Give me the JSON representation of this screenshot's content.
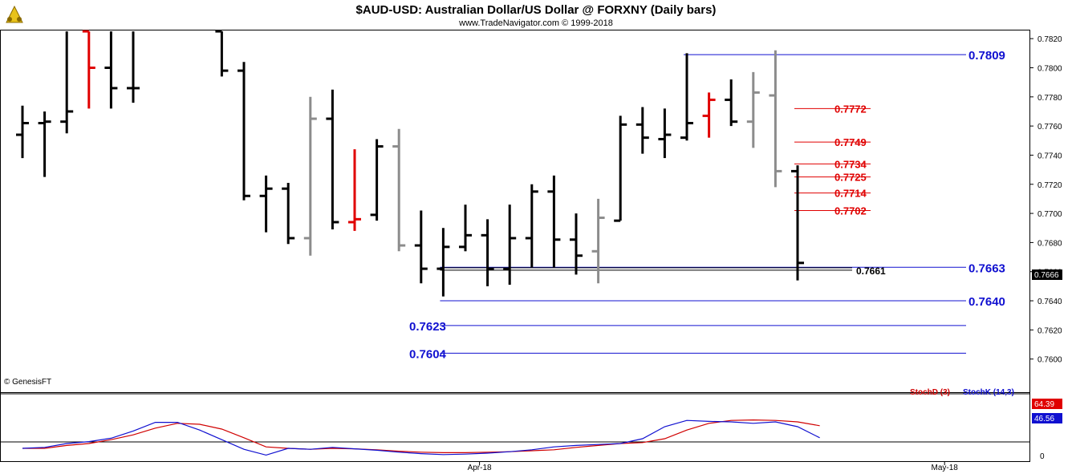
{
  "header": {
    "title": "$AUD-USD:  Australian Dollar/US Dollar @ FORXNY  (Daily bars)",
    "subtitle": "www.TradeNavigator.com © 1999-2018"
  },
  "copyright": "© GenesisFT",
  "logo_icon": "bull-bear-logo-icon",
  "colors": {
    "up": "#000000",
    "down": "#e00000",
    "neutral": "#8c8c8c",
    "blue": "#1010d0",
    "red": "#e00000",
    "stochK": "#1010d0",
    "stochD": "#d00000"
  },
  "chart_data": [
    {
      "type": "ohlc",
      "title": "$AUD-USD:  Australian Dollar/US Dollar @ FORXNY  (Daily bars)",
      "ylim": [
        0.7585,
        0.7825
      ],
      "y_ticks": [
        "0.7820",
        "0.7800",
        "0.7780",
        "0.7760",
        "0.7740",
        "0.7720",
        "0.7700",
        "0.7680",
        "0.7660",
        "0.7640",
        "0.7620",
        "0.7600"
      ],
      "x_ticks": [
        {
          "label": "Apr-18",
          "bar": 21
        },
        {
          "label": "May-18",
          "bar": 42
        }
      ],
      "bars": [
        {
          "o": 0.7754,
          "h": 0.7774,
          "l": 0.7738,
          "c": 0.7762,
          "color": "black"
        },
        {
          "o": 0.7762,
          "h": 0.777,
          "l": 0.7725,
          "c": 0.7763,
          "color": "black"
        },
        {
          "o": 0.7763,
          "h": 0.7825,
          "l": 0.7755,
          "c": 0.777,
          "color": "black"
        },
        {
          "o": 0.7825,
          "h": 0.7825,
          "l": 0.7772,
          "c": 0.78,
          "color": "red"
        },
        {
          "o": 0.78,
          "h": 0.7825,
          "l": 0.7772,
          "c": 0.7786,
          "color": "black"
        },
        {
          "o": 0.7786,
          "h": 0.7825,
          "l": 0.7776,
          "c": 0.7786,
          "color": "black"
        },
        {
          "o": null,
          "h": null,
          "l": null,
          "c": null,
          "color": "none"
        },
        {
          "o": null,
          "h": null,
          "l": null,
          "c": null,
          "color": "none"
        },
        {
          "o": null,
          "h": null,
          "l": null,
          "c": null,
          "color": "none"
        },
        {
          "o": 0.7825,
          "h": 0.7825,
          "l": 0.7794,
          "c": 0.7798,
          "color": "black"
        },
        {
          "o": 0.7798,
          "h": 0.7804,
          "l": 0.7709,
          "c": 0.7712,
          "color": "black"
        },
        {
          "o": 0.7712,
          "h": 0.7726,
          "l": 0.7687,
          "c": 0.7717,
          "color": "black"
        },
        {
          "o": 0.7717,
          "h": 0.7721,
          "l": 0.7679,
          "c": 0.7683,
          "color": "black"
        },
        {
          "o": 0.7683,
          "h": 0.778,
          "l": 0.7671,
          "c": 0.7765,
          "color": "gray"
        },
        {
          "o": 0.7765,
          "h": 0.7785,
          "l": 0.7689,
          "c": 0.7694,
          "color": "black"
        },
        {
          "o": 0.7694,
          "h": 0.7744,
          "l": 0.7688,
          "c": 0.7696,
          "color": "red"
        },
        {
          "o": 0.7699,
          "h": 0.7751,
          "l": 0.7695,
          "c": 0.7746,
          "color": "black"
        },
        {
          "o": 0.7746,
          "h": 0.7758,
          "l": 0.7674,
          "c": 0.7678,
          "color": "gray"
        },
        {
          "o": 0.7678,
          "h": 0.7702,
          "l": 0.7652,
          "c": 0.7662,
          "color": "black"
        },
        {
          "o": 0.7662,
          "h": 0.769,
          "l": 0.7643,
          "c": 0.7677,
          "color": "black"
        },
        {
          "o": 0.7677,
          "h": 0.7706,
          "l": 0.7674,
          "c": 0.7685,
          "color": "black"
        },
        {
          "o": 0.7685,
          "h": 0.7696,
          "l": 0.765,
          "c": 0.7662,
          "color": "black"
        },
        {
          "o": 0.7662,
          "h": 0.7706,
          "l": 0.7651,
          "c": 0.7683,
          "color": "black"
        },
        {
          "o": 0.7683,
          "h": 0.772,
          "l": 0.7663,
          "c": 0.7715,
          "color": "black"
        },
        {
          "o": 0.7715,
          "h": 0.7726,
          "l": 0.7663,
          "c": 0.7682,
          "color": "black"
        },
        {
          "o": 0.7682,
          "h": 0.77,
          "l": 0.7658,
          "c": 0.7671,
          "color": "black"
        },
        {
          "o": 0.7674,
          "h": 0.771,
          "l": 0.7652,
          "c": 0.7697,
          "color": "gray"
        },
        {
          "o": 0.7695,
          "h": 0.7767,
          "l": 0.7695,
          "c": 0.7761,
          "color": "black"
        },
        {
          "o": 0.7761,
          "h": 0.7773,
          "l": 0.7741,
          "c": 0.7752,
          "color": "black"
        },
        {
          "o": 0.7751,
          "h": 0.7772,
          "l": 0.7738,
          "c": 0.7754,
          "color": "black"
        },
        {
          "o": 0.7752,
          "h": 0.781,
          "l": 0.775,
          "c": 0.7762,
          "color": "black"
        },
        {
          "o": 0.7767,
          "h": 0.7783,
          "l": 0.7752,
          "c": 0.7778,
          "color": "red"
        },
        {
          "o": 0.7778,
          "h": 0.7792,
          "l": 0.776,
          "c": 0.7763,
          "color": "black"
        },
        {
          "o": 0.7763,
          "h": 0.7797,
          "l": 0.7745,
          "c": 0.7783,
          "color": "gray"
        },
        {
          "o": 0.7781,
          "h": 0.7812,
          "l": 0.7718,
          "c": 0.7729,
          "color": "gray"
        },
        {
          "o": 0.7729,
          "h": 0.7733,
          "l": 0.7654,
          "c": 0.7666,
          "color": "black"
        }
      ],
      "levels": [
        {
          "value": 0.7809,
          "label": "0.7809",
          "color": "blue",
          "from_bar": 30
        },
        {
          "value": 0.7772,
          "label": "0.7772",
          "color": "red",
          "from_bar": 35
        },
        {
          "value": 0.7749,
          "label": "0.7749",
          "color": "red",
          "from_bar": 35
        },
        {
          "value": 0.7734,
          "label": "0.7734",
          "color": "red",
          "from_bar": 35
        },
        {
          "value": 0.7725,
          "label": "0.7725",
          "color": "red",
          "from_bar": 35
        },
        {
          "value": 0.7714,
          "label": "0.7714",
          "color": "red",
          "from_bar": 35
        },
        {
          "value": 0.7702,
          "label": "0.7702",
          "color": "red",
          "from_bar": 35
        },
        {
          "value": 0.7663,
          "label": "0.7663",
          "color": "blue",
          "from_bar": 19
        },
        {
          "value": 0.764,
          "label": "0.7640",
          "color": "blue",
          "from_bar": 19
        },
        {
          "value": 0.7623,
          "label": "0.7623",
          "color": "blue",
          "from_bar": 19,
          "label_left": true
        },
        {
          "value": 0.7604,
          "label": "0.7604",
          "color": "blue",
          "from_bar": 19,
          "label_left": true
        }
      ],
      "support_line": {
        "value": 0.7661,
        "label": "0.7661",
        "from_bar": 19
      },
      "last_price": "0.7666"
    },
    {
      "type": "line",
      "indicator": "Stochastic",
      "series": [
        {
          "name": "StochD (3)",
          "color": "red",
          "last": "64.39",
          "values": [
            0,
            0,
            6,
            10,
            18,
            28,
            42,
            52,
            50,
            40,
            22,
            3,
            0,
            -2,
            0,
            -1,
            -3,
            -6,
            -8,
            -9,
            -9,
            -8,
            -7,
            -5,
            -3,
            2,
            6,
            10,
            12,
            20,
            38,
            52,
            58,
            59,
            58,
            55,
            47
          ]
        },
        {
          "name": "StochK (14,3)",
          "color": "blue",
          "last": "46.56",
          "values": [
            0,
            2,
            10,
            14,
            21,
            36,
            54,
            54,
            38,
            18,
            -2,
            -14,
            0,
            -2,
            2,
            -1,
            -4,
            -8,
            -11,
            -13,
            -12,
            -10,
            -7,
            -3,
            3,
            6,
            8,
            10,
            20,
            45,
            58,
            56,
            55,
            52,
            55,
            45,
            22
          ]
        }
      ]
    }
  ]
}
